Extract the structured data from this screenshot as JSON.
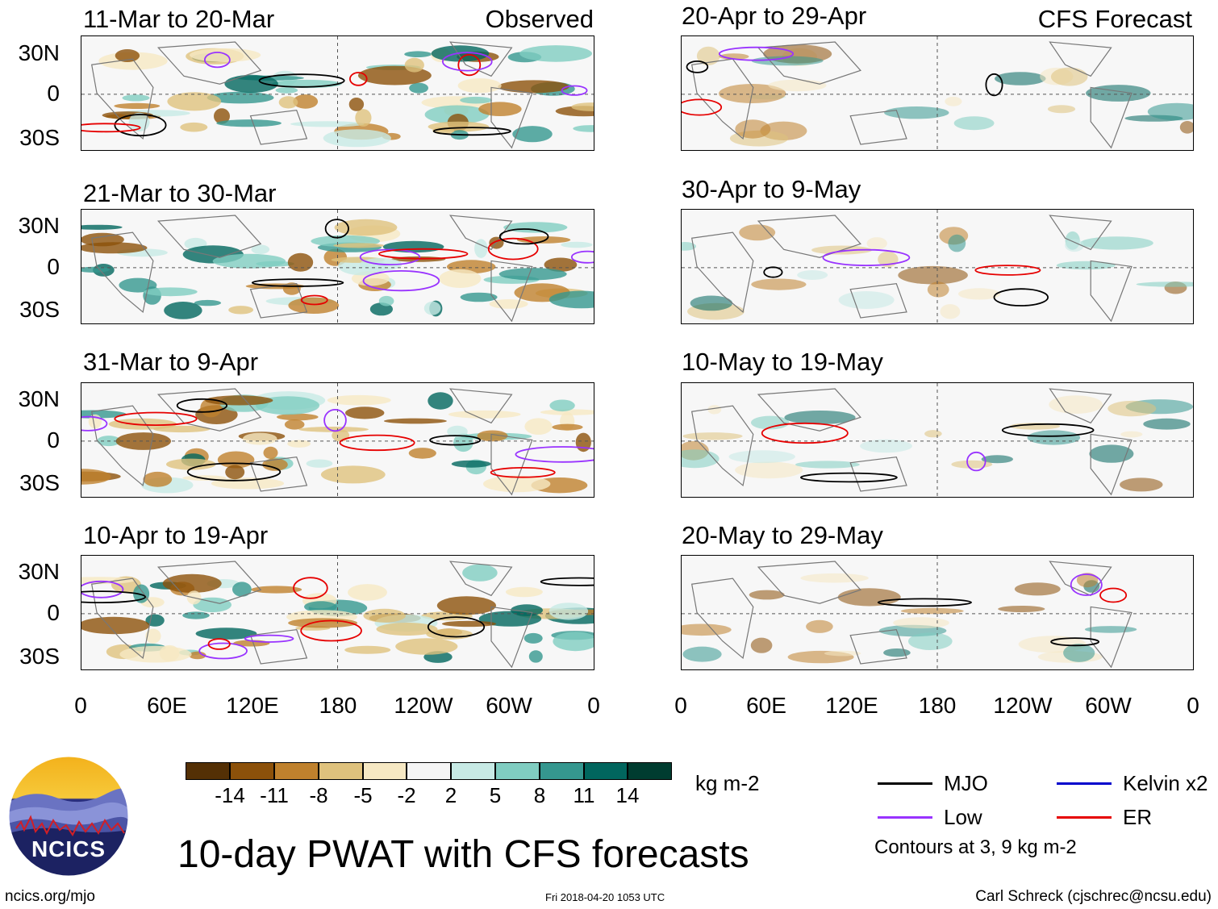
{
  "observed_tag": "Observed",
  "forecast_tag": "CFS Forecast",
  "left_panels": [
    {
      "title": "11-Mar to 20-Mar"
    },
    {
      "title": "21-Mar to 30-Mar"
    },
    {
      "title": "31-Mar to 9-Apr"
    },
    {
      "title": "10-Apr to 19-Apr"
    }
  ],
  "right_panels": [
    {
      "title": "20-Apr to 29-Apr"
    },
    {
      "title": "30-Apr to 9-May"
    },
    {
      "title": "10-May to 19-May"
    },
    {
      "title": "20-May to 29-May"
    }
  ],
  "lat_labels": [
    "30N",
    "0",
    "30S"
  ],
  "lon_labels": [
    "0",
    "60E",
    "120E",
    "180",
    "120W",
    "60W",
    "0"
  ],
  "colorbar": {
    "unit": "kg m-2",
    "labels": [
      "-14",
      "-11",
      "-8",
      "-5",
      "-2",
      "2",
      "5",
      "8",
      "11",
      "14"
    ],
    "colors": [
      "#543005",
      "#8c510a",
      "#bf812d",
      "#dfc27d",
      "#f6e8c3",
      "#f5f5f5",
      "#c7eae5",
      "#80cdc1",
      "#35978f",
      "#01665e",
      "#003c30"
    ]
  },
  "legend": {
    "mjo": "MJO",
    "low": "Low",
    "kelvin": "Kelvin x2",
    "er": "ER",
    "contours": "Contours at 3, 9 kg m-2",
    "colors": {
      "mjo": "#000000",
      "low": "#9933ff",
      "kelvin": "#0000cc",
      "er": "#e60000"
    }
  },
  "main_title": "10-day PWAT with CFS forecasts",
  "logo_text": "NCICS",
  "footer": {
    "url": "ncics.org/mjo",
    "timestamp": "Fri 2018-04-20 1053 UTC",
    "author": "Carl Schreck (cjschrec@ncsu.edu)"
  }
}
